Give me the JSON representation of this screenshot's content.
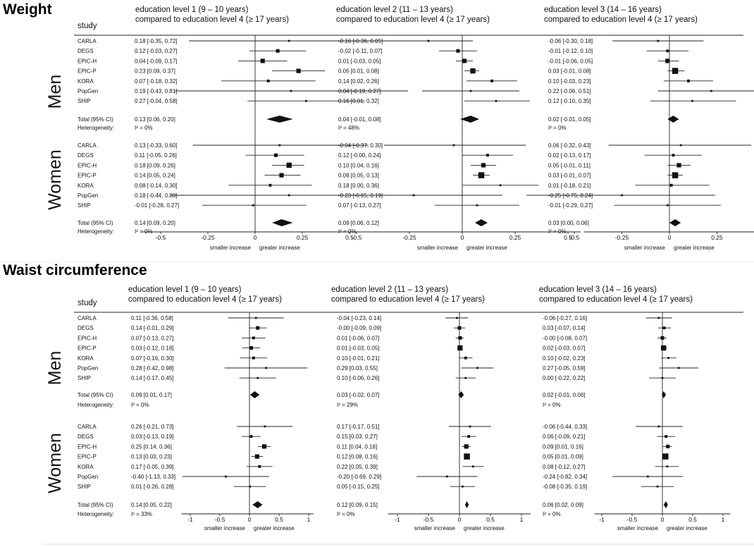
{
  "outcomes": [
    {
      "title": "Weight",
      "study_header": "study",
      "group_labels": [
        "Men",
        "Women"
      ],
      "studies": [
        "CARLA",
        "DEGS",
        "EPIC-H",
        "EPIC-P",
        "KORA",
        "PopGen",
        "SHIP"
      ],
      "total_label": "Total (95% CI)",
      "heterogeneity_label": "Heterogeneity:",
      "ticks": [
        "-0.5",
        "-0.25",
        "0",
        "0.25",
        "0.5"
      ],
      "tick_values": [
        -0.5,
        -0.25,
        0,
        0.25,
        0.5
      ],
      "axis_captions": [
        "smaller increase",
        "greater increase"
      ],
      "panels": [
        {
          "header": [
            "education level 1 (9 – 10 years)",
            "compared to education level 4 (≥ 17 years)"
          ],
          "men": {
            "rows": [
              "0.18 [-0.35, 0.72]",
              "0.12 [-0.03, 0.27]",
              "0.04 [-0.09, 0.17]",
              "0.23 [0.09, 0.37]",
              "0.07 [-0.18, 0.32]",
              "0.19 [-0.43, 0.81]",
              "0.27 [-0.04, 0.58]"
            ],
            "total": "0.13 [0.06, 0.20]",
            "het": "I² = 0%"
          },
          "women": {
            "rows": [
              "0.13 [-0.33, 0.60]",
              "0.11 [-0.05, 0.26]",
              "0.18 [0.09, 0.26]",
              "0.14 [0.05, 0.24]",
              "0.08 [-0.14, 0.30]",
              "0.18 [-0.44, 0.80]",
              "-0.01 [-0.28, 0.27]"
            ],
            "total": "0.14 [0.09, 0.20]",
            "het": "I² = 0%"
          }
        },
        {
          "header": [
            "education level 2 (11 – 13 years)",
            "compared to education level 4 (≥ 17 years)"
          ],
          "men": {
            "rows": [
              "-0.16 [-0.36, 0.05]",
              "-0.02 [-0.11, 0.07]",
              "0.01 [-0.03, 0.05]",
              "0.05 [0.01, 0.08]",
              "0.14 [0.02, 0.26]",
              "0.04 [-0.19, 0.27]",
              "0.16 [0.01, 0.32]"
            ],
            "total": "0.04 [-0.01, 0.08]",
            "het": "I² = 48%"
          },
          "women": {
            "rows": [
              "-0.04 [-0.37, 0.30]",
              "0.12 [-0.00, 0.24]",
              "0.10 [0.04, 0.16]",
              "0.09 [0.05, 0.13]",
              "0.18 [0.00, 0.36]",
              "-0.23 [-0.65, 0.19]",
              "0.07 [-0.13, 0.27]"
            ],
            "total": "0.09 [0.06, 0.12]",
            "het": "I² = 0%"
          }
        },
        {
          "header": [
            "education level 3 (14 – 16 years)",
            "compared to education level 4 (≥ 17 years)"
          ],
          "men": {
            "rows": [
              "-0.06 [-0.30, 0.18]",
              "-0.01 [-0.12, 0.10]",
              "-0.01 [-0.06, 0.05]",
              "0.03 [-0.01, 0.08]",
              "0.10 [-0.03, 0.23]",
              "0.22 [-0.06, 0.51]",
              "0.12 [-0.10, 0.35]"
            ],
            "total": "0.02 [-0.01, 0.05]",
            "het": "I² = 0%"
          },
          "women": {
            "rows": [
              "0.06 [-0.32, 0.43]",
              "0.02 [-0.13, 0.17]",
              "0.05 [-0.01, 0.11]",
              "0.03 [-0.01, 0.07]",
              "0.01 [-0.18, 0.21]",
              "-0.25 [-0.75, 0.24]",
              "-0.01 [-0.29, 0.27]"
            ],
            "total": "0.03 [0.00, 0.06]",
            "het": "I² = 0%"
          }
        }
      ]
    },
    {
      "title": "Waist circumference",
      "study_header": "study",
      "group_labels": [
        "Men",
        "Women"
      ],
      "studies": [
        "CARLA",
        "DEGS",
        "EPIC-H",
        "EPIC-P",
        "KORA",
        "PopGen",
        "SHIP"
      ],
      "total_label": "Total (95% CI)",
      "heterogeneity_label": "Heterogeneity:",
      "ticks": [
        "-1",
        "-0.5",
        "0",
        "0.5",
        "1"
      ],
      "tick_values": [
        -1,
        -0.5,
        0,
        0.5,
        1
      ],
      "axis_captions": [
        "smaller increase",
        "greater increase"
      ],
      "panels": [
        {
          "header": [
            "education level 1 (9 – 10 years)",
            "compared to education level 4 (≥ 17 years)"
          ],
          "men": {
            "rows": [
              "0.11 [-0.36, 0.58]",
              "0.14 [-0.01, 0.29]",
              "0.07 [-0.13, 0.27]",
              "0.03 [-0.12, 0.18]",
              "0.07 [-0.16, 0.30]",
              "0.28 [-0.42, 0.98]",
              "0.14 [-0.17, 0.45]"
            ],
            "total": "0.09 [0.01, 0.17]",
            "het": "I² = 0%"
          },
          "women": {
            "rows": [
              "0.26 [-0.21, 0.73]",
              "0.03 [-0.13, 0.19]",
              "0.25 [0.14, 0.36]",
              "0.13 [0.03, 0.23]",
              "0.17 [-0.05, 0.39]",
              "-0.40 [-1.13, 0.33]",
              "0.01 [-0.26, 0.28]"
            ],
            "total": "0.14 [0.05, 0.22]",
            "het": "I² = 33%"
          }
        },
        {
          "header": [
            "education level 2 (11 – 13 years)",
            "compared to education level 4 (≥ 17 years)"
          ],
          "men": {
            "rows": [
              "-0.04 [-0.23, 0.14]",
              "-0.00 [-0.09, 0.09]",
              "0.01 [-0.06, 0.07]",
              "0.01 [-0.03, 0.05]",
              "0.10 [-0.01, 0.21]",
              "0.29 [0.03, 0.55]",
              "0.10 [-0.06, 0.26]"
            ],
            "total": "0.03 [-0.02, 0.07]",
            "het": "I² = 29%"
          },
          "women": {
            "rows": [
              "0.17 [-0.17, 0.51]",
              "0.15 [0.03, 0.27]",
              "0.11 [0.04, 0.18]",
              "0.12 [0.08, 0.16]",
              "0.22 [0.05, 0.39]",
              "-0.20 [-0.69, 0.29]",
              "0.05 [-0.15, 0.25]"
            ],
            "total": "0.12 [0.09, 0.15]",
            "het": "I² = 0%"
          }
        },
        {
          "header": [
            "education level 3 (14 – 16 years)",
            "compared to education level 4 (≥ 17 years)"
          ],
          "men": {
            "rows": [
              "-0.06 [-0.27, 0.16]",
              "0.03 [-0.07, 0.14]",
              "-0.00 [-0.08, 0.07]",
              "0.02 [-0.03, 0.07]",
              "0.10 [-0.02, 0.23]",
              "0.27 [-0.05, 0.59]",
              "0.00 [-0.22, 0.22]"
            ],
            "total": "0.02 [-0.01, 0.06]",
            "het": "I² = 0%"
          },
          "women": {
            "rows": [
              "-0.06 [-0.44, 0.33]",
              "0.06 [-0.09, 0.21]",
              "0.09 [0.01, 0.16]",
              "0.05 [0.01, 0.09]",
              "0.08 [-0.12, 0.27]",
              "-0.24 [-0.82, 0.34]",
              "-0.08 [-0.35, 0.19]"
            ],
            "total": "0.06 [0.02, 0.09]",
            "het": "I² = 0%"
          }
        }
      ]
    }
  ],
  "chart_data": {
    "type": "forest",
    "note_fields": "each estimate is [effect, ci_low, ci_high, weight]",
    "charts": [
      {
        "outcome": "Weight",
        "xlim": [
          -0.5,
          0.5
        ],
        "xticks": [
          -0.5,
          -0.25,
          0,
          0.25,
          0.5
        ],
        "panels": [
          {
            "name": "education level 1 (9 – 10 years) compared to education level 4 (≥ 17 years)",
            "men": [
              [
                0.18,
                -0.35,
                0.72,
                1
              ],
              [
                0.12,
                -0.03,
                0.27,
                3
              ],
              [
                0.04,
                -0.09,
                0.17,
                4
              ],
              [
                0.23,
                0.09,
                0.37,
                4
              ],
              [
                0.07,
                -0.18,
                0.32,
                2
              ],
              [
                0.19,
                -0.43,
                0.81,
                1
              ],
              [
                0.27,
                -0.04,
                0.58,
                1
              ]
            ],
            "men_total": [
              0.13,
              0.06,
              0.2
            ],
            "women": [
              [
                0.13,
                -0.33,
                0.6,
                1
              ],
              [
                0.11,
                -0.05,
                0.26,
                3
              ],
              [
                0.18,
                0.09,
                0.26,
                5
              ],
              [
                0.14,
                0.05,
                0.24,
                4
              ],
              [
                0.08,
                -0.14,
                0.3,
                2
              ],
              [
                0.18,
                -0.44,
                0.8,
                1
              ],
              [
                -0.01,
                -0.28,
                0.27,
                1
              ]
            ],
            "women_total": [
              0.14,
              0.09,
              0.2
            ]
          },
          {
            "name": "education level 2 (11 – 13 years) compared to education level 4 (≥ 17 years)",
            "men": [
              [
                -0.16,
                -0.36,
                0.05,
                1
              ],
              [
                -0.02,
                -0.11,
                0.07,
                3
              ],
              [
                0.01,
                -0.03,
                0.05,
                4
              ],
              [
                0.05,
                0.01,
                0.08,
                5
              ],
              [
                0.14,
                0.02,
                0.26,
                2
              ],
              [
                0.04,
                -0.19,
                0.27,
                1
              ],
              [
                0.16,
                0.01,
                0.32,
                1
              ]
            ],
            "men_total": [
              0.04,
              -0.01,
              0.08
            ],
            "women": [
              [
                -0.04,
                -0.37,
                0.3,
                1
              ],
              [
                0.12,
                -0.0,
                0.24,
                2
              ],
              [
                0.1,
                0.04,
                0.16,
                4
              ],
              [
                0.09,
                0.05,
                0.13,
                6
              ],
              [
                0.18,
                0.0,
                0.36,
                1
              ],
              [
                -0.23,
                -0.65,
                0.19,
                1
              ],
              [
                0.07,
                -0.13,
                0.27,
                1
              ]
            ],
            "women_total": [
              0.09,
              0.06,
              0.12
            ]
          },
          {
            "name": "education level 3 (14 – 16 years) compared to education level 4 (≥ 17 years)",
            "men": [
              [
                -0.06,
                -0.3,
                0.18,
                1
              ],
              [
                -0.01,
                -0.12,
                0.1,
                2
              ],
              [
                -0.01,
                -0.06,
                0.05,
                4
              ],
              [
                0.03,
                -0.01,
                0.08,
                6
              ],
              [
                0.1,
                -0.03,
                0.23,
                2
              ],
              [
                0.22,
                -0.06,
                0.51,
                1
              ],
              [
                0.12,
                -0.1,
                0.35,
                1
              ]
            ],
            "men_total": [
              0.02,
              -0.01,
              0.05
            ],
            "women": [
              [
                0.06,
                -0.32,
                0.43,
                1
              ],
              [
                0.02,
                -0.13,
                0.17,
                2
              ],
              [
                0.05,
                -0.01,
                0.11,
                4
              ],
              [
                0.03,
                -0.01,
                0.07,
                6
              ],
              [
                0.01,
                -0.18,
                0.21,
                2
              ],
              [
                -0.25,
                -0.75,
                0.24,
                1
              ],
              [
                -0.01,
                -0.29,
                0.27,
                1
              ]
            ],
            "women_total": [
              0.03,
              0.0,
              0.06
            ]
          }
        ]
      },
      {
        "outcome": "Waist circumference",
        "xlim": [
          -1,
          1
        ],
        "xticks": [
          -1,
          -0.5,
          0,
          0.5,
          1
        ],
        "panels": [
          {
            "name": "education level 1 (9 – 10 years) compared to education level 4 (≥ 17 years)",
            "men": [
              [
                0.11,
                -0.36,
                0.58,
                1
              ],
              [
                0.14,
                -0.01,
                0.29,
                3
              ],
              [
                0.07,
                -0.13,
                0.27,
                2
              ],
              [
                0.03,
                -0.12,
                0.18,
                3
              ],
              [
                0.07,
                -0.16,
                0.3,
                2
              ],
              [
                0.28,
                -0.42,
                0.98,
                1
              ],
              [
                0.14,
                -0.17,
                0.45,
                1
              ]
            ],
            "men_total": [
              0.09,
              0.01,
              0.17
            ],
            "women": [
              [
                0.26,
                -0.21,
                0.73,
                1
              ],
              [
                0.03,
                -0.13,
                0.19,
                2
              ],
              [
                0.25,
                0.14,
                0.36,
                4
              ],
              [
                0.13,
                0.03,
                0.23,
                4
              ],
              [
                0.17,
                -0.05,
                0.39,
                2
              ],
              [
                -0.4,
                -1.13,
                0.33,
                1
              ],
              [
                0.01,
                -0.26,
                0.28,
                1
              ]
            ],
            "women_total": [
              0.14,
              0.05,
              0.22
            ]
          },
          {
            "name": "education level 2 (11 – 13 years) compared to education level 4 (≥ 17 years)",
            "men": [
              [
                -0.04,
                -0.23,
                0.14,
                1
              ],
              [
                -0.0,
                -0.09,
                0.09,
                3
              ],
              [
                0.01,
                -0.06,
                0.07,
                3
              ],
              [
                0.01,
                -0.03,
                0.05,
                5
              ],
              [
                0.1,
                -0.01,
                0.21,
                2
              ],
              [
                0.29,
                0.03,
                0.55,
                1
              ],
              [
                0.1,
                -0.06,
                0.26,
                1
              ]
            ],
            "men_total": [
              0.03,
              -0.02,
              0.07
            ],
            "women": [
              [
                0.17,
                -0.17,
                0.51,
                1
              ],
              [
                0.15,
                0.03,
                0.27,
                2
              ],
              [
                0.11,
                0.04,
                0.18,
                4
              ],
              [
                0.12,
                0.08,
                0.16,
                6
              ],
              [
                0.22,
                0.05,
                0.39,
                1
              ],
              [
                -0.2,
                -0.69,
                0.29,
                1
              ],
              [
                0.05,
                -0.15,
                0.25,
                1
              ]
            ],
            "women_total": [
              0.12,
              0.09,
              0.15
            ]
          },
          {
            "name": "education level 3 (14 – 16 years) compared to education level 4 (≥ 17 years)",
            "men": [
              [
                -0.06,
                -0.27,
                0.16,
                1
              ],
              [
                0.03,
                -0.07,
                0.14,
                2
              ],
              [
                -0.0,
                -0.08,
                0.07,
                3
              ],
              [
                0.02,
                -0.03,
                0.07,
                5
              ],
              [
                0.1,
                -0.02,
                0.23,
                1
              ],
              [
                0.27,
                -0.05,
                0.59,
                1
              ],
              [
                0.0,
                -0.22,
                0.22,
                1
              ]
            ],
            "men_total": [
              0.02,
              -0.01,
              0.06
            ],
            "women": [
              [
                -0.06,
                -0.44,
                0.33,
                1
              ],
              [
                0.06,
                -0.09,
                0.21,
                2
              ],
              [
                0.09,
                0.01,
                0.16,
                3
              ],
              [
                0.05,
                0.01,
                0.09,
                6
              ],
              [
                0.08,
                -0.12,
                0.27,
                1
              ],
              [
                -0.24,
                -0.82,
                0.34,
                1
              ],
              [
                -0.08,
                -0.35,
                0.19,
                1
              ]
            ],
            "women_total": [
              0.06,
              0.02,
              0.09
            ]
          }
        ]
      }
    ]
  }
}
